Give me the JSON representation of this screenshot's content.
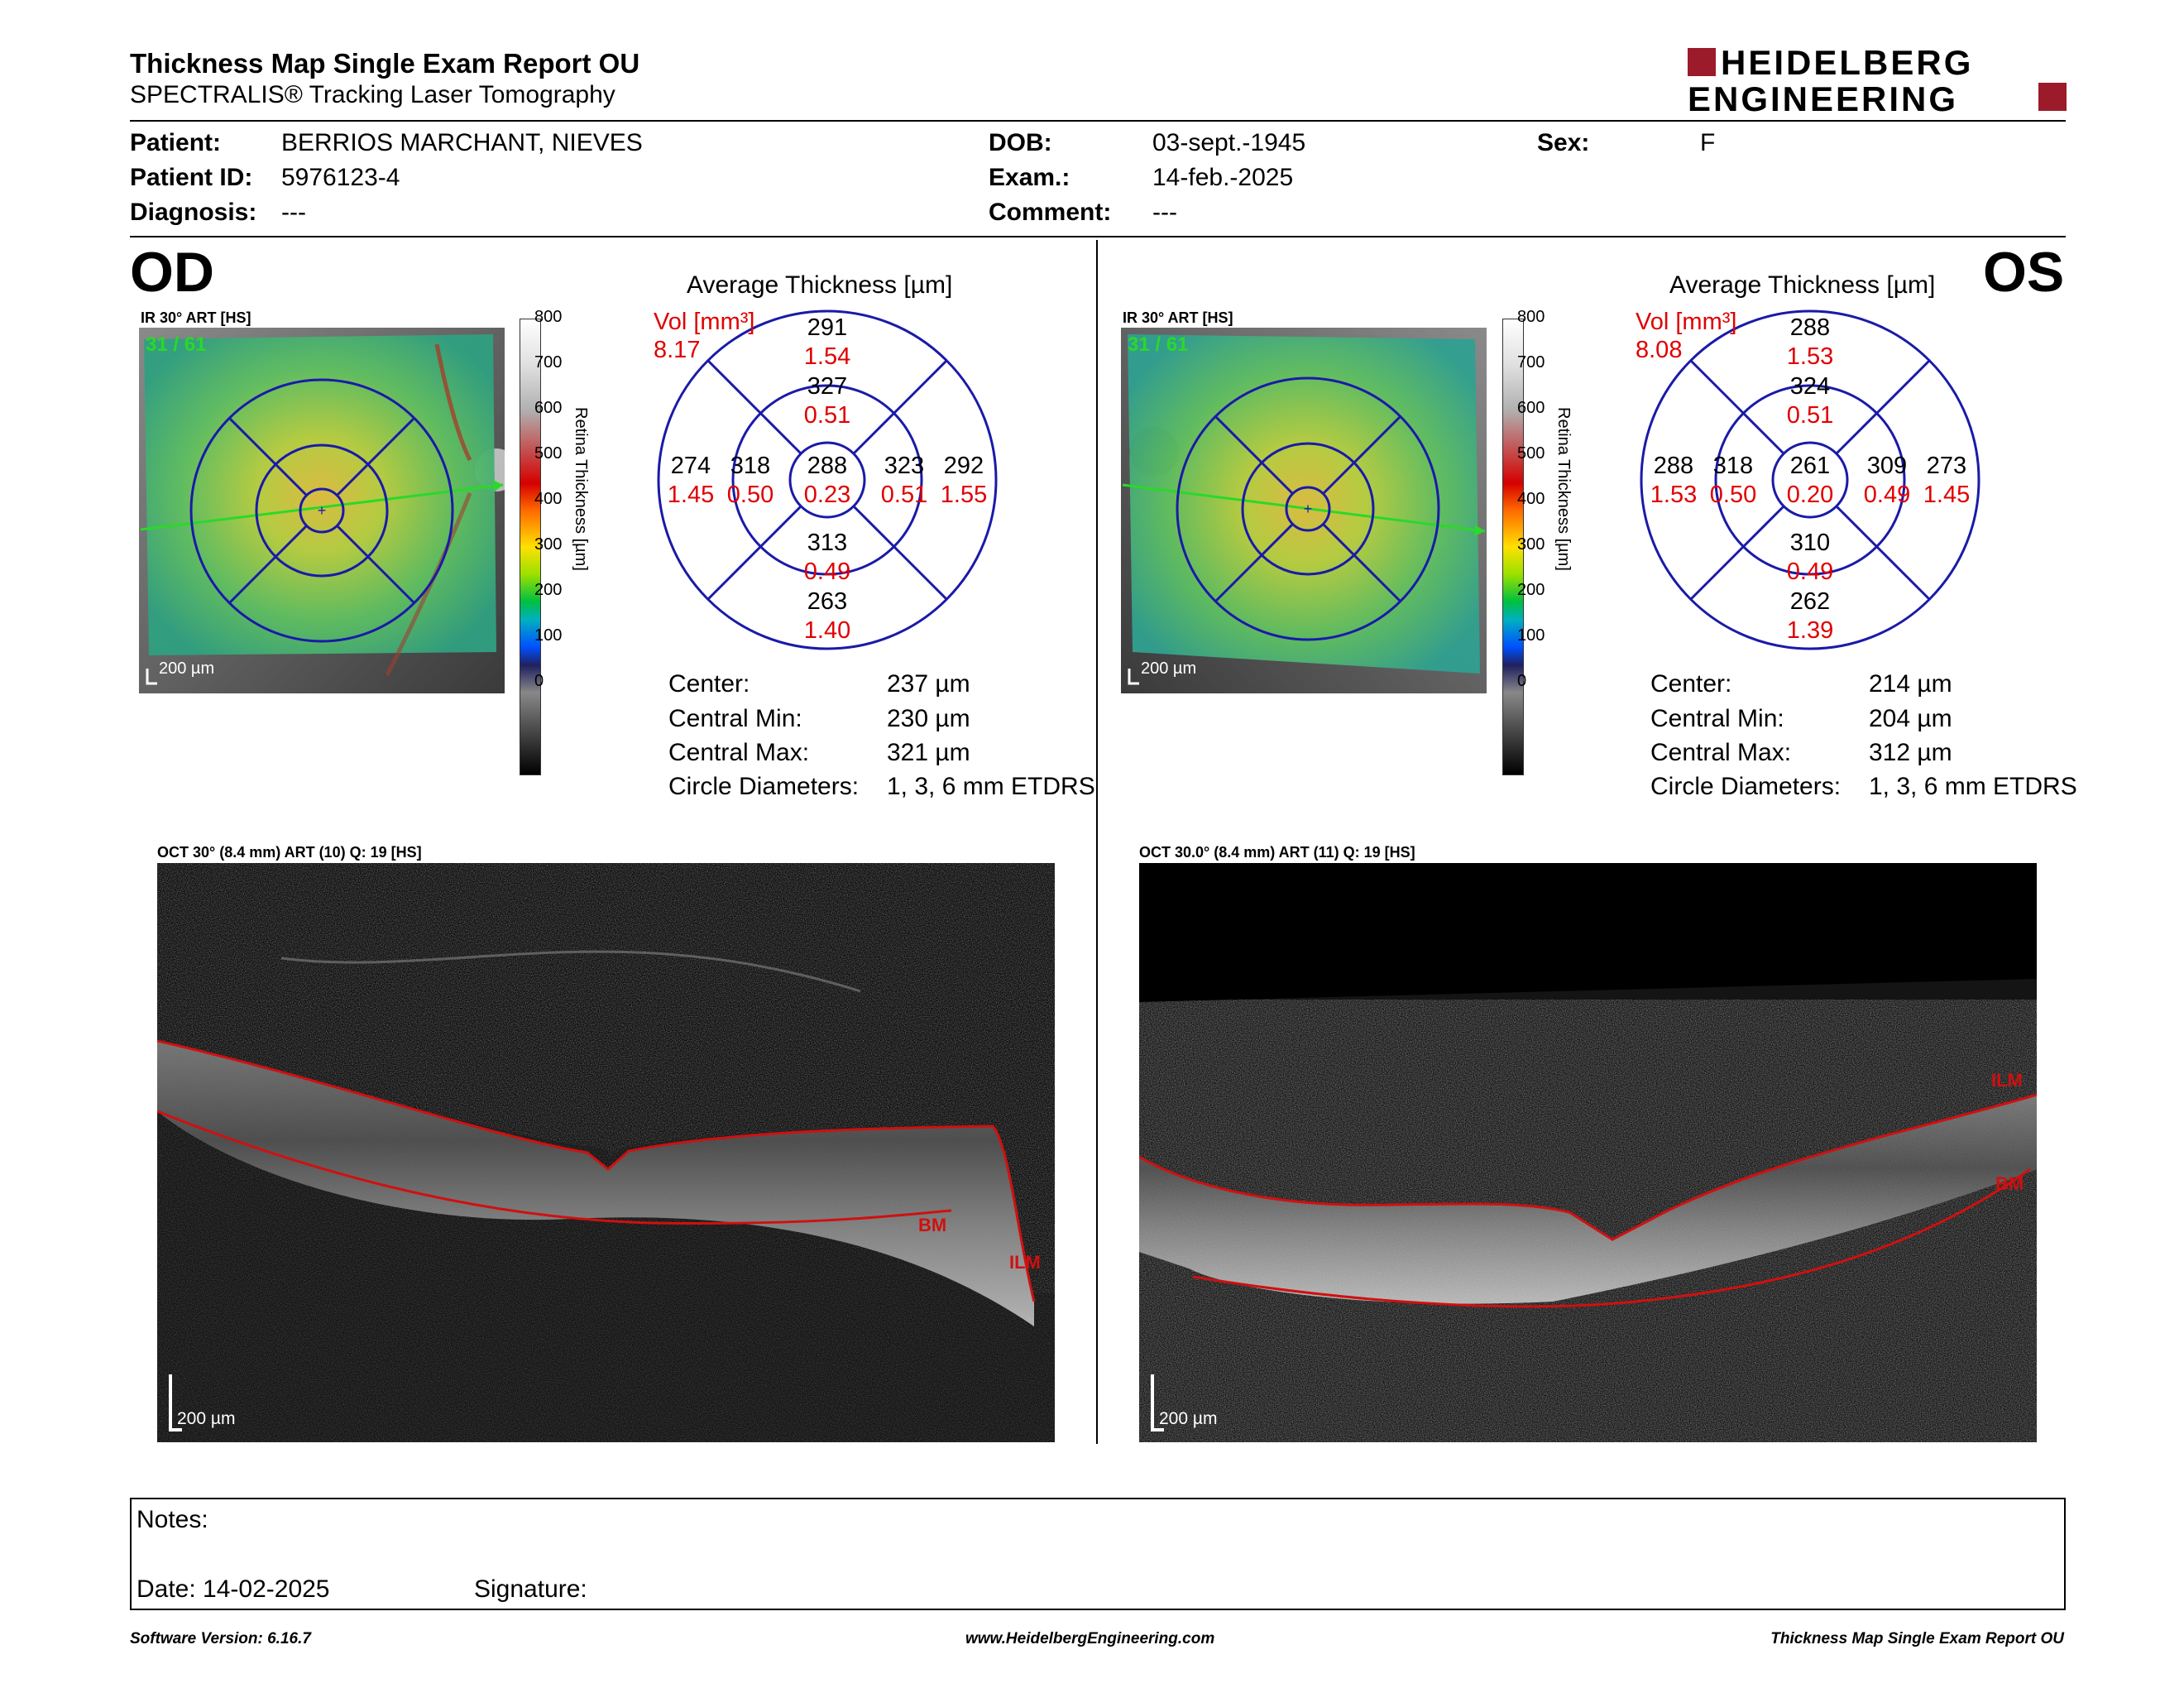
{
  "header": {
    "title": "Thickness Map Single Exam Report OU",
    "subtitle": "SPECTRALIS® Tracking Laser Tomography",
    "logo_line1": "HEIDELBERG",
    "logo_line2": "ENGINEERING"
  },
  "patient": {
    "patient_label": "Patient:",
    "patient_value": "BERRIOS MARCHANT, NIEVES",
    "id_label": "Patient ID:",
    "id_value": "5976123-4",
    "diag_label": "Diagnosis:",
    "diag_value": "---",
    "dob_label": "DOB:",
    "dob_value": "03-sept.-1945",
    "exam_label": "Exam.:",
    "exam_value": "14-feb.-2025",
    "comment_label": "Comment:",
    "comment_value": "---",
    "sex_label": "Sex:",
    "sex_value": "F"
  },
  "od": {
    "eye": "OD",
    "ir_caption": "IR 30° ART [HS]",
    "frames": "31 / 61",
    "scale": "200 µm",
    "avg_title": "Average Thickness [µm]",
    "vol_label": "Vol [mm³]",
    "vol_value": "8.17",
    "grid": {
      "center": [
        "288",
        "0.23"
      ],
      "inner_sup": [
        "327",
        "0.51"
      ],
      "inner_inf": [
        "313",
        "0.49"
      ],
      "inner_left": [
        "318",
        "0.50"
      ],
      "inner_right": [
        "323",
        "0.51"
      ],
      "outer_sup": [
        "291",
        "1.54"
      ],
      "outer_inf": [
        "263",
        "1.40"
      ],
      "outer_left": [
        "274",
        "1.45"
      ],
      "outer_right": [
        "292",
        "1.55"
      ]
    },
    "stats": {
      "center_label": "Center:",
      "center_value": "237 µm",
      "min_label": "Central Min:",
      "min_value": "230 µm",
      "max_label": "Central Max:",
      "max_value": "321 µm",
      "circ_label": "Circle Diameters:",
      "circ_value": "1, 3, 6 mm ETDRS"
    },
    "oct_caption": "OCT 30° (8.4 mm) ART (10) Q: 19 [HS]",
    "oct_scale": "200 µm",
    "bm_label": "BM",
    "ilm_label": "ILM"
  },
  "os": {
    "eye": "OS",
    "ir_caption": "IR 30° ART [HS]",
    "frames": "31 / 61",
    "scale": "200 µm",
    "avg_title": "Average Thickness [µm]",
    "vol_label": "Vol [mm³]",
    "vol_value": "8.08",
    "grid": {
      "center": [
        "261",
        "0.20"
      ],
      "inner_sup": [
        "324",
        "0.51"
      ],
      "inner_inf": [
        "310",
        "0.49"
      ],
      "inner_left": [
        "318",
        "0.50"
      ],
      "inner_right": [
        "309",
        "0.49"
      ],
      "outer_sup": [
        "288",
        "1.53"
      ],
      "outer_inf": [
        "262",
        "1.39"
      ],
      "outer_left": [
        "288",
        "1.53"
      ],
      "outer_right": [
        "273",
        "1.45"
      ]
    },
    "stats": {
      "center_label": "Center:",
      "center_value": "214 µm",
      "min_label": "Central Min:",
      "min_value": "204 µm",
      "max_label": "Central Max:",
      "max_value": "312 µm",
      "circ_label": "Circle Diameters:",
      "circ_value": "1, 3, 6 mm ETDRS"
    },
    "oct_caption": "OCT 30.0° (8.4 mm) ART (11) Q: 19 [HS]",
    "oct_scale": "200 µm",
    "bm_label": "BM",
    "ilm_label": "ILM"
  },
  "colorbar": {
    "ticks": [
      "800",
      "700",
      "600",
      "500",
      "400",
      "300",
      "200",
      "100",
      "0"
    ],
    "label": "Retina Thickness [µm]"
  },
  "notes": {
    "notes_label": "Notes:",
    "date_label": "Date: 14-02-2025",
    "signature_label": "Signature:"
  },
  "footer": {
    "version": "Software Version: 6.16.7",
    "url": "www.HeidelbergEngineering.com",
    "report": "Thickness Map Single Exam Report OU"
  },
  "colors": {
    "grid_blue": "#1a1aa8",
    "red_values": "#e00000",
    "logo_red": "#9b1b2a",
    "green_overlay": "#2bd82b"
  }
}
